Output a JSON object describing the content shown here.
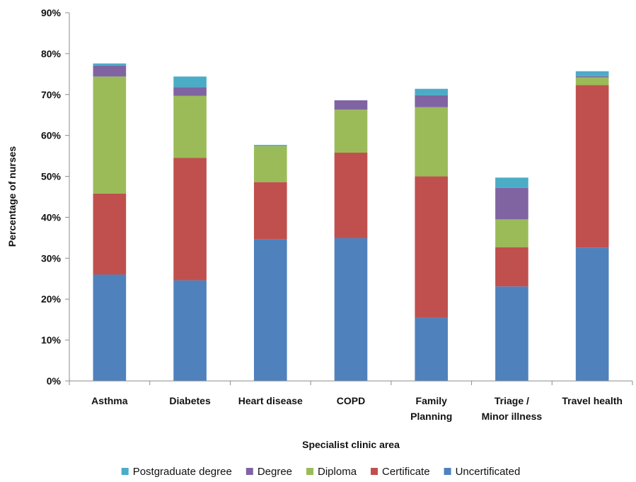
{
  "chart_data": {
    "type": "bar",
    "stacked": true,
    "title": "",
    "xlabel": "Specialist clinic area",
    "ylabel": "Percentage of nurses",
    "ylim": [
      0,
      90
    ],
    "y_ticks": [
      "0%",
      "10%",
      "20%",
      "30%",
      "40%",
      "50%",
      "60%",
      "70%",
      "80%",
      "90%"
    ],
    "categories": [
      [
        "Asthma"
      ],
      [
        "Diabetes"
      ],
      [
        "Heart disease"
      ],
      [
        "COPD"
      ],
      [
        "Family",
        "Planning"
      ],
      [
        "Triage /",
        "Minor illness"
      ],
      [
        "Travel health"
      ]
    ],
    "series": [
      {
        "name": "Uncertificated",
        "color": "#4f81bd",
        "values": [
          26.0,
          24.6,
          34.6,
          34.9,
          15.4,
          23.1,
          32.6
        ]
      },
      {
        "name": "Certificate",
        "color": "#c0504d",
        "values": [
          19.8,
          29.9,
          14.0,
          20.9,
          34.6,
          9.6,
          39.7
        ]
      },
      {
        "name": "Diploma",
        "color": "#9bbb59",
        "values": [
          28.6,
          15.2,
          8.8,
          10.5,
          16.9,
          6.8,
          1.9
        ]
      },
      {
        "name": "Degree",
        "color": "#8064a2",
        "values": [
          2.7,
          2.1,
          0.0,
          2.3,
          2.9,
          7.7,
          0.3
        ]
      },
      {
        "name": "Postgraduate degree",
        "color": "#4bacc6",
        "values": [
          0.5,
          2.6,
          0.3,
          0.0,
          1.6,
          2.5,
          1.2
        ]
      }
    ],
    "legend_position": "bottom",
    "legend_order": [
      "Postgraduate degree",
      "Degree",
      "Diploma",
      "Certificate",
      "Uncertificated"
    ],
    "grid": false
  }
}
